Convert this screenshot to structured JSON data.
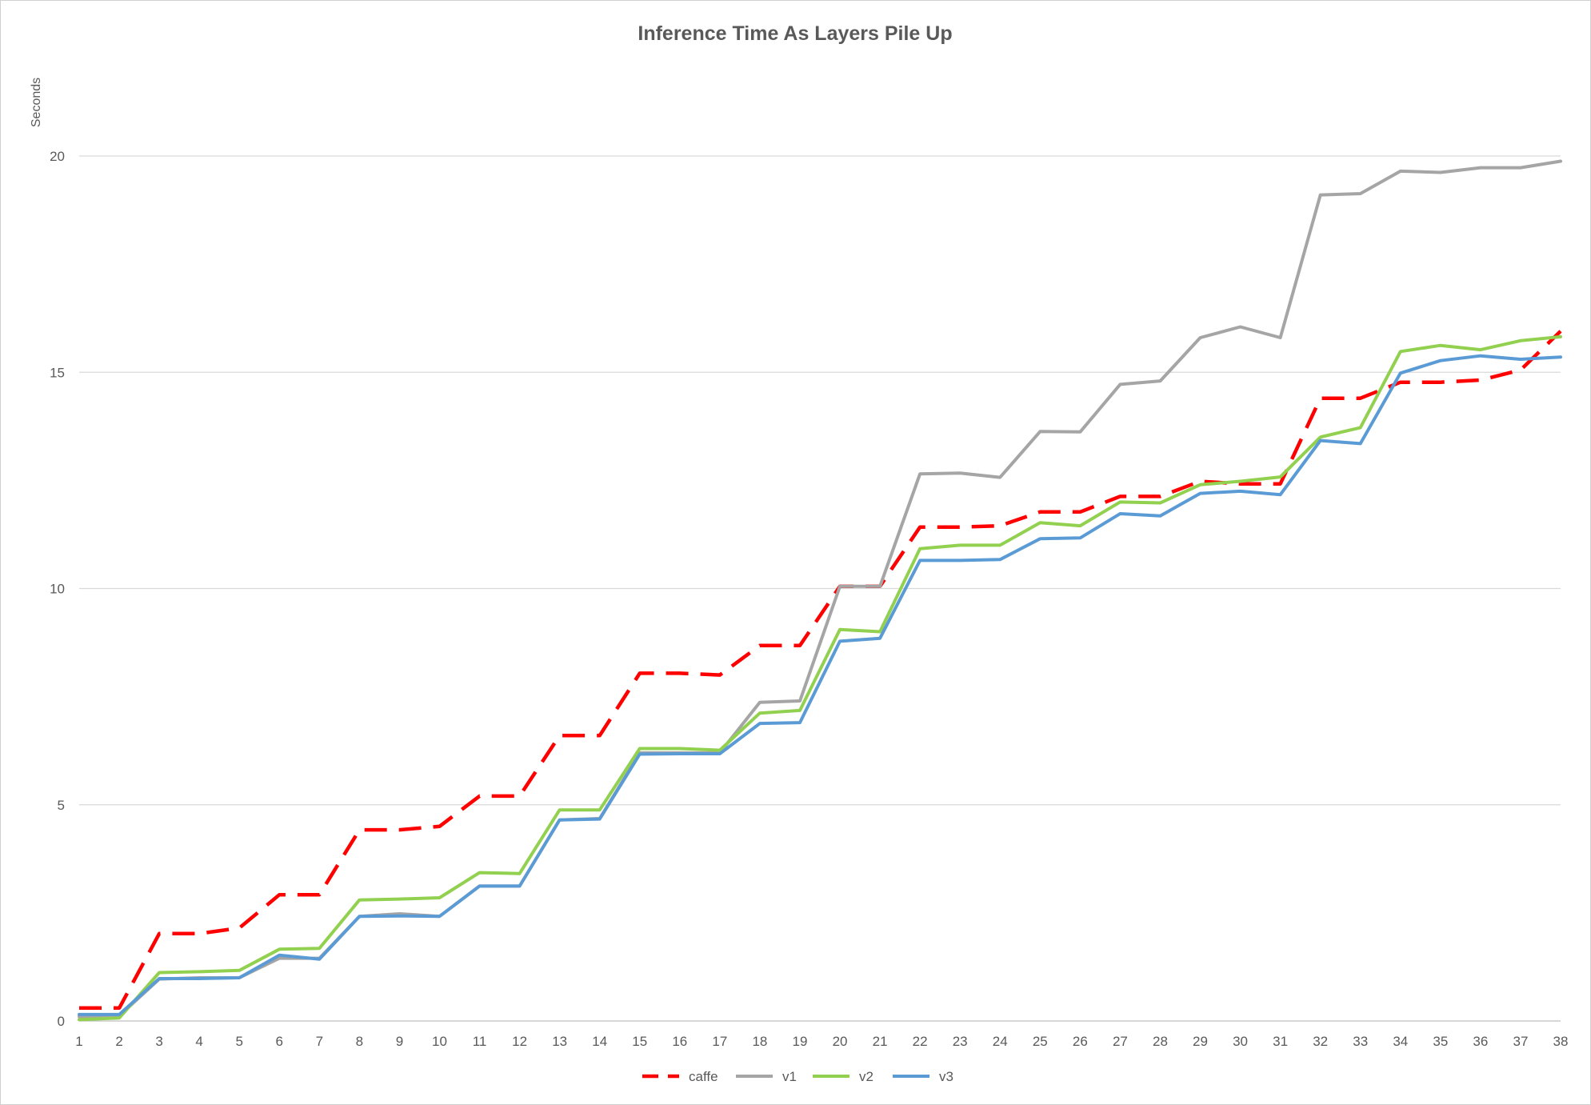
{
  "chart_data": {
    "type": "line",
    "title": "Inference Time As Layers Pile Up",
    "xlabel": "",
    "ylabel": "Seconds",
    "ylim": [
      0,
      20
    ],
    "yticks": [
      0,
      5,
      10,
      15,
      20
    ],
    "grid": true,
    "legend_position": "bottom",
    "x": [
      1,
      2,
      3,
      4,
      5,
      6,
      7,
      8,
      9,
      10,
      11,
      12,
      13,
      14,
      15,
      16,
      17,
      18,
      19,
      20,
      21,
      22,
      23,
      24,
      25,
      26,
      27,
      28,
      29,
      30,
      31,
      32,
      33,
      34,
      35,
      36,
      37,
      38
    ],
    "series": [
      {
        "name": "caffe",
        "color": "#ff0000",
        "dashed": true,
        "values": [
          0.3,
          0.3,
          2.02,
          2.02,
          2.15,
          2.92,
          2.92,
          4.42,
          4.42,
          4.5,
          5.2,
          5.2,
          6.6,
          6.6,
          8.04,
          8.04,
          8.0,
          8.68,
          8.68,
          10.05,
          10.05,
          11.42,
          11.42,
          11.45,
          11.77,
          11.77,
          12.13,
          12.13,
          12.48,
          12.42,
          12.42,
          14.4,
          14.4,
          14.77,
          14.77,
          14.82,
          15.05,
          15.95
        ]
      },
      {
        "name": "v1",
        "color": "#a5a5a5",
        "dashed": false,
        "values": [
          0.1,
          0.12,
          0.97,
          1.0,
          1.0,
          1.45,
          1.45,
          2.42,
          2.48,
          2.42,
          3.12,
          3.12,
          4.65,
          4.68,
          6.2,
          6.2,
          6.2,
          7.37,
          7.4,
          10.05,
          10.05,
          12.65,
          12.67,
          12.57,
          13.63,
          13.62,
          14.72,
          14.8,
          15.8,
          16.05,
          15.8,
          19.1,
          19.13,
          19.65,
          19.62,
          19.73,
          19.73,
          19.88
        ]
      },
      {
        "name": "v2",
        "color": "#92d050",
        "dashed": false,
        "values": [
          0.03,
          0.07,
          1.12,
          1.14,
          1.17,
          1.66,
          1.68,
          2.8,
          2.82,
          2.85,
          3.43,
          3.41,
          4.88,
          4.88,
          6.3,
          6.3,
          6.26,
          7.12,
          7.18,
          9.05,
          9.0,
          10.92,
          11.0,
          11.0,
          11.52,
          11.45,
          12.0,
          11.98,
          12.4,
          12.48,
          12.58,
          13.5,
          13.72,
          15.48,
          15.62,
          15.52,
          15.73,
          15.82
        ]
      },
      {
        "name": "v3",
        "color": "#5b9bd5",
        "dashed": false,
        "values": [
          0.15,
          0.15,
          0.98,
          0.98,
          1.0,
          1.52,
          1.43,
          2.42,
          2.43,
          2.42,
          3.12,
          3.12,
          4.65,
          4.67,
          6.17,
          6.18,
          6.18,
          6.88,
          6.9,
          8.78,
          8.85,
          10.65,
          10.65,
          10.67,
          11.15,
          11.17,
          11.73,
          11.68,
          12.2,
          12.25,
          12.17,
          13.42,
          13.35,
          14.98,
          15.27,
          15.38,
          15.3,
          15.35
        ]
      }
    ]
  }
}
